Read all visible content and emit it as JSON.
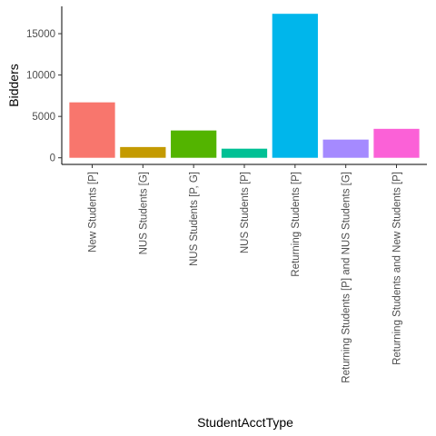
{
  "chart_data": {
    "type": "bar",
    "categories": [
      "New Students [P]",
      "NUS Students [G]",
      "NUS Students [P, G]",
      "NUS Students [P]",
      "Returning Students [P]",
      "Returning Students [P] and NUS Students [G]",
      "Returning Students and New Students [P]"
    ],
    "values": [
      6700,
      1300,
      3300,
      1100,
      17400,
      2200,
      3500
    ],
    "colors": [
      "#F8766D",
      "#C49A00",
      "#53B400",
      "#00C094",
      "#00B6EB",
      "#A58AFF",
      "#FB61D7"
    ],
    "xlabel": "StudentAcctType",
    "ylabel": "Bidders",
    "ylim": [
      -800,
      18300
    ],
    "yticks": [
      0,
      5000,
      10000,
      15000
    ],
    "ytick_labels": [
      "0",
      "5000",
      "10000",
      "15000"
    ],
    "grid": false,
    "legend": "none"
  }
}
